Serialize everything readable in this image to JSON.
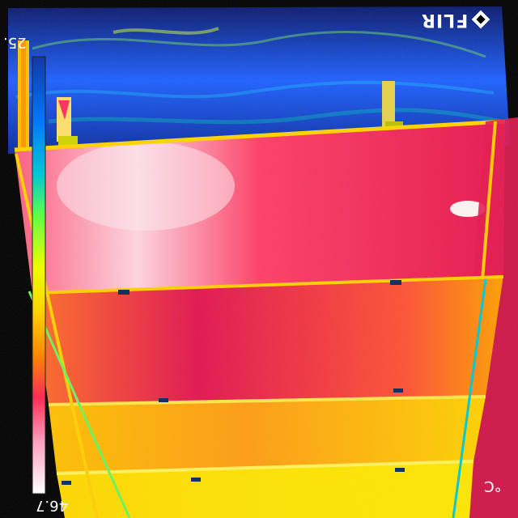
{
  "camera": {
    "brand": "FLIR"
  },
  "scale": {
    "max_label": "25.",
    "min_label": "46.7",
    "unit_label": "°C",
    "palette": [
      "#ffffff",
      "#ffd1e0",
      "#ff3f6b",
      "#e6004c",
      "#ff5a1f",
      "#ff8a00",
      "#ffd400",
      "#ecff00",
      "#5cff4a",
      "#00c8d2",
      "#0078ff",
      "#102a9a"
    ]
  },
  "colors": {
    "sky_dark": "#0a1a6e",
    "sky_mid": "#1d60ff",
    "panel_hot": "#e5144d",
    "panel_warm": "#ff6a23",
    "panel_mid": "#ffb100",
    "panel_cool": "#ffe300",
    "hotspot": "#fff4f4"
  }
}
